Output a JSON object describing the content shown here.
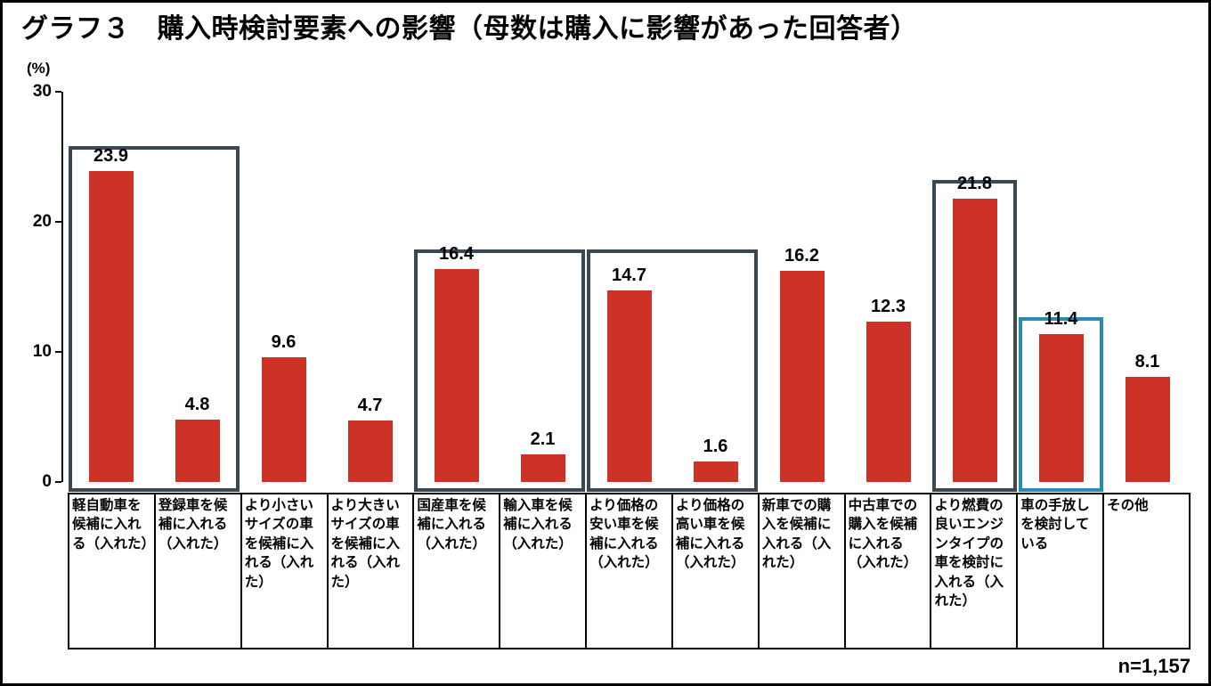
{
  "title": "グラフ３　購入時検討要素への影響（母数は購入に影響があった回答者）",
  "footer": {
    "sample_size": "n=1,157"
  },
  "chart_data": {
    "type": "bar",
    "title": "グラフ３　購入時検討要素への影響（母数は購入に影響があった回答者）",
    "ylabel": "(%)",
    "ylim": [
      0,
      30
    ],
    "yticks": [
      30,
      20,
      10,
      0
    ],
    "grid": false,
    "legend": "none",
    "bar_color": "#cd3226",
    "categories": [
      "軽自動車を候補に入れる（入れた）",
      "登録車を候補に入れる（入れた）",
      "より小さいサイズの車を候補に入れる（入れた）",
      "より大きいサイズの車を候補に入れる（入れた）",
      "国産車を候補に入れる（入れた）",
      "輸入車を候補に入れる（入れた）",
      "より価格の安い車を候補に入れる（入れた）",
      "より価格の高い車を候補に入れる（入れた）",
      "新車での購入を候補に入れる（入れた）",
      "中古車での購入を候補に入れる（入れた）",
      "より燃費の良いエンジンタイプの車を検討に入れる（入れた）",
      "車の手放しを検討している",
      "その他"
    ],
    "values": [
      23.9,
      4.8,
      9.6,
      4.7,
      16.4,
      2.1,
      14.7,
      1.6,
      16.2,
      12.3,
      21.8,
      11.4,
      8.1
    ],
    "highlight_boxes": [
      {
        "from": 0,
        "to": 1,
        "top_value": 25.8,
        "color": "#3a4854"
      },
      {
        "from": 4,
        "to": 5,
        "top_value": 17.9,
        "color": "#3a4854"
      },
      {
        "from": 6,
        "to": 7,
        "top_value": 17.9,
        "color": "#3a4854"
      },
      {
        "from": 10,
        "to": 10,
        "top_value": 23.2,
        "color": "#3a4854"
      },
      {
        "from": 11,
        "to": 11,
        "top_value": 12.7,
        "color": "#2a8ab6"
      }
    ]
  }
}
